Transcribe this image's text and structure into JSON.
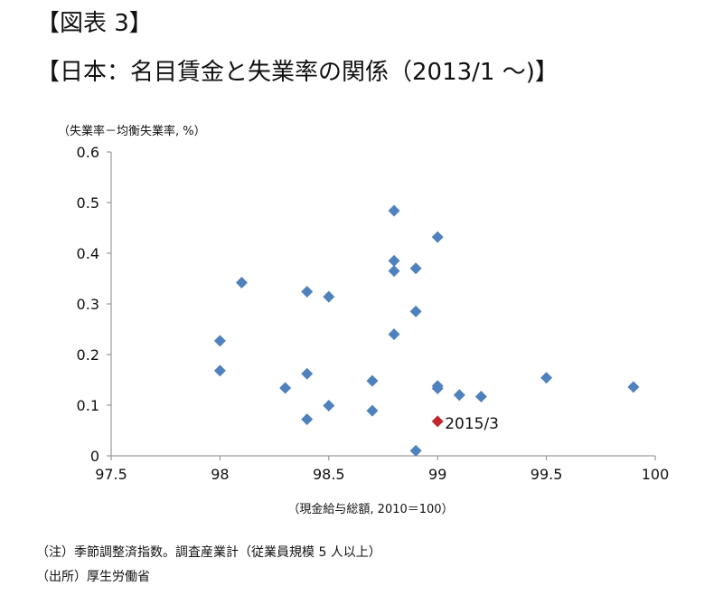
{
  "header": {
    "figure_label": "【図表 3】",
    "title": "【日本：名目賃金と失業率の関係（2013/1 ～)】"
  },
  "footer": {
    "note": "（注）季節調整済指数。調査産業計（従業員規模 5 人以上）",
    "source": "（出所）厚生労働省"
  },
  "chart_data": {
    "type": "scatter",
    "title": "",
    "xlabel": "（現金給与総額, 2010＝100）",
    "ylabel": "（失業率－均衡失業率, %）",
    "xlim": [
      97.5,
      100
    ],
    "ylim": [
      0,
      0.6
    ],
    "x_ticks": [
      "97.5",
      "98",
      "98.5",
      "99",
      "99.5",
      "100"
    ],
    "y_ticks": [
      "0",
      "0.1",
      "0.2",
      "0.3",
      "0.4",
      "0.5",
      "0.6"
    ],
    "grid": false,
    "marker_color": "#4F81BD",
    "highlight_color": "#C0282D",
    "series": [
      {
        "points": [
          [
            98.0,
            0.227
          ],
          [
            98.0,
            0.168
          ],
          [
            98.1,
            0.342
          ],
          [
            98.3,
            0.134
          ],
          [
            98.4,
            0.324
          ],
          [
            98.4,
            0.162
          ],
          [
            98.4,
            0.072
          ],
          [
            98.5,
            0.314
          ],
          [
            98.5,
            0.099
          ],
          [
            98.7,
            0.148
          ],
          [
            98.7,
            0.089
          ],
          [
            98.8,
            0.484
          ],
          [
            98.8,
            0.385
          ],
          [
            98.8,
            0.365
          ],
          [
            98.8,
            0.24
          ],
          [
            98.9,
            0.37
          ],
          [
            98.9,
            0.285
          ],
          [
            98.9,
            0.01
          ],
          [
            99.0,
            0.432
          ],
          [
            99.0,
            0.138
          ],
          [
            99.0,
            0.133
          ],
          [
            99.1,
            0.12
          ],
          [
            99.2,
            0.117
          ],
          [
            99.5,
            0.154
          ],
          [
            99.9,
            0.136
          ]
        ]
      }
    ],
    "highlight": {
      "point": [
        99.0,
        0.068
      ],
      "label": "2015/3"
    }
  }
}
